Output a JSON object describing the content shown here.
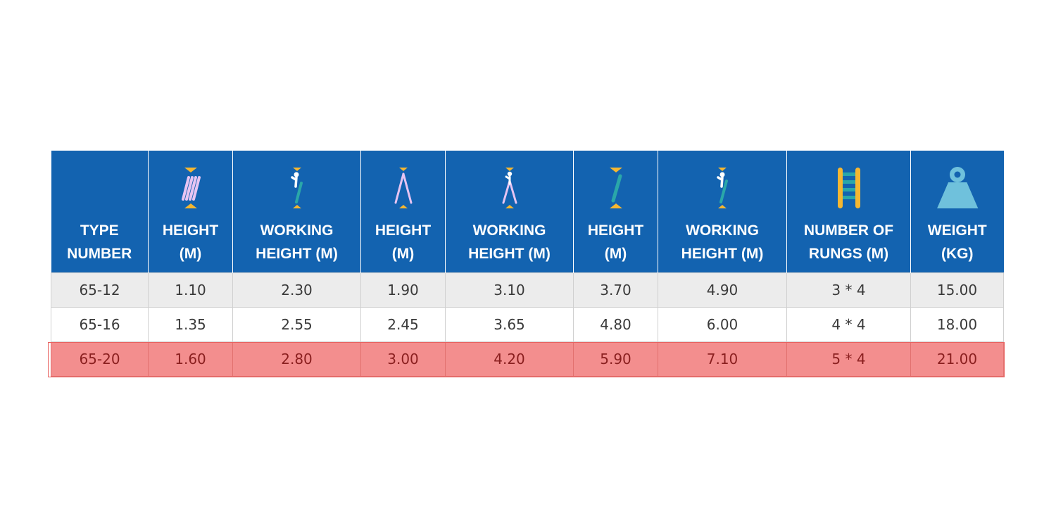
{
  "table": {
    "headers": [
      {
        "line1": "TYPE",
        "line2": "NUMBER",
        "icon": "none"
      },
      {
        "line1": "HEIGHT",
        "line2": "(M)",
        "icon": "folded-ladder-icon"
      },
      {
        "line1": "WORKING",
        "line2": "HEIGHT (M)",
        "icon": "person-on-folded-ladder-icon"
      },
      {
        "line1": "HEIGHT",
        "line2": "(M)",
        "icon": "a-frame-ladder-icon"
      },
      {
        "line1": "WORKING",
        "line2": "HEIGHT (M)",
        "icon": "person-on-a-frame-ladder-icon"
      },
      {
        "line1": "HEIGHT",
        "line2": "(M)",
        "icon": "extended-ladder-icon"
      },
      {
        "line1": "WORKING",
        "line2": "HEIGHT (M)",
        "icon": "person-on-extended-ladder-icon"
      },
      {
        "line1": "NUMBER OF",
        "line2": "RUNGS (M)",
        "icon": "rungs-ladder-icon"
      },
      {
        "line1": "WEIGHT",
        "line2": "(KG)",
        "icon": "weight-icon"
      }
    ],
    "rows": [
      [
        "65-12",
        "1.10",
        "2.30",
        "1.90",
        "3.10",
        "3.70",
        "4.90",
        "3 * 4",
        "15.00"
      ],
      [
        "65-16",
        "1.35",
        "2.55",
        "2.45",
        "3.65",
        "4.80",
        "6.00",
        "4 * 4",
        "18.00"
      ],
      [
        "65-20",
        "1.60",
        "2.80",
        "3.00",
        "4.20",
        "5.90",
        "7.10",
        "5 * 4",
        "21.00"
      ]
    ],
    "highlighted_row": 3
  },
  "colors": {
    "header_bg": "#1363b0",
    "row_gray": "#ececec",
    "row_highlight": "#f38e8e",
    "arrow": "#f5b731",
    "ladder_pink": "#e6c4f2",
    "ladder_teal": "#2aa7a9",
    "weight": "#6fc1dc"
  }
}
